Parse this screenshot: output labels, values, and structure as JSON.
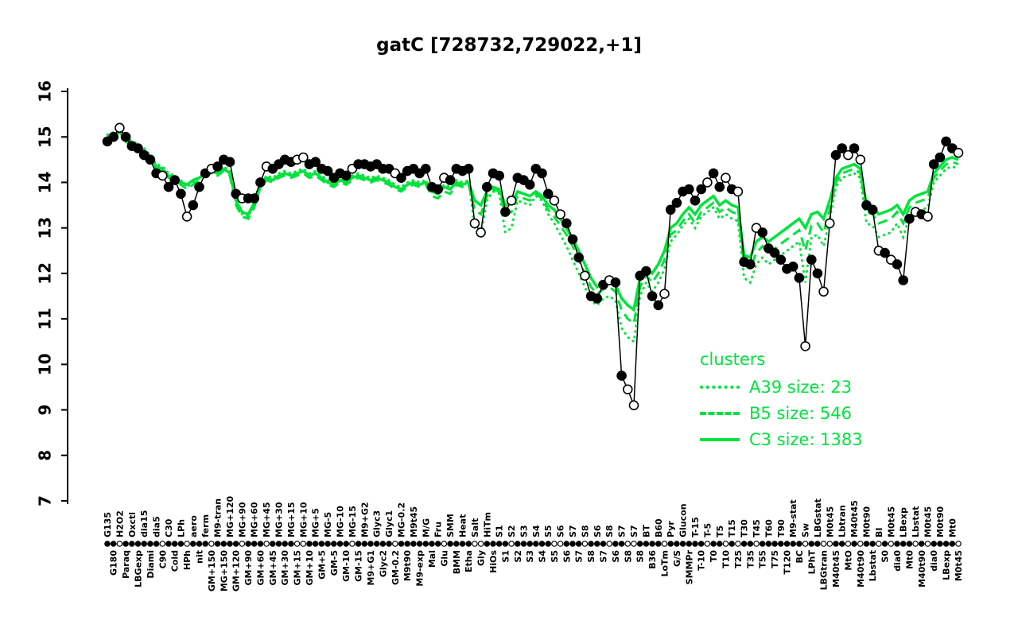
{
  "title": "gatC [728732,729022,+1]",
  "colors": {
    "cluster": "#00e33c",
    "gene": "#000000",
    "background": "#ffffff"
  },
  "legend": {
    "header": "clusters",
    "entries": [
      {
        "label": "A39 size: 23",
        "style": "dotted"
      },
      {
        "label": "B5 size: 546",
        "style": "dashed"
      },
      {
        "label": "C3 size: 1383",
        "style": "solid"
      }
    ]
  },
  "chart_data": {
    "type": "line",
    "title": "gatC [728732,729022,+1]",
    "xlabel": "",
    "ylabel": "",
    "ylim": [
      7,
      16
    ],
    "yticks": [
      7,
      8,
      9,
      10,
      11,
      12,
      13,
      14,
      15,
      16
    ],
    "grid": false,
    "legend_position": "right-center",
    "categories": [
      "G135",
      "G180",
      "H2O2",
      "Paraq",
      "Oxctl",
      "LBGexp",
      "dia15",
      "Diami",
      "dia5",
      "C90",
      "C30",
      "Cold",
      "LPh",
      "HPh",
      "aero",
      "nit",
      "ferm",
      "GM+150",
      "M9-tran",
      "MG+150",
      "MG+120",
      "GM+120",
      "MG+90",
      "GM+90",
      "MG+60",
      "GM+60",
      "MG+45",
      "GM+45",
      "MG+30",
      "GM+30",
      "MG+15",
      "GM+15",
      "MG+10",
      "GM+10",
      "MG+5",
      "GM+5",
      "MG-5",
      "GM-5",
      "MG-10",
      "GM-10",
      "MG-15",
      "GM-15",
      "M9+G2",
      "M9+G1",
      "Glyc3",
      "Glyc2",
      "Glyc1",
      "GM-0.2",
      "MG-0.2",
      "M9t90",
      "M9t45",
      "M9-exp",
      "M/G",
      "Mal",
      "Fru",
      "Glu",
      "SMM",
      "BMM",
      "Heat",
      "Etha",
      "Salt",
      "Gly",
      "HiTm",
      "HiOs",
      "S1",
      "S1",
      "S2",
      "S2",
      "S3",
      "S3",
      "S4",
      "S4",
      "S5",
      "S5",
      "S6",
      "S6",
      "S7",
      "S7",
      "S8",
      "S8",
      "S6",
      "S7",
      "S8",
      "S6",
      "S7",
      "S8",
      "S7",
      "S8",
      "BT",
      "B36",
      "B60",
      "LoTm",
      "Pyr",
      "G/S",
      "Glucon",
      "SMMPr",
      "T-15",
      "T-10",
      "T-5",
      "T0",
      "T5",
      "T10",
      "T15",
      "T25",
      "T30",
      "T35",
      "T45",
      "T55",
      "T60",
      "T75",
      "T90",
      "T120",
      "M9-stat",
      "BC",
      "Sw",
      "LPhT",
      "LBGstat",
      "LBGtran",
      "M0t45",
      "M40t45",
      "Lbtran",
      "MtO",
      "M40t45",
      "M40t90",
      "M0t90",
      "Lbstat",
      "BI",
      "S0",
      "M0t45",
      "dia0",
      "LBexp",
      "Mt0",
      "Lbstat",
      "M40t90",
      "M0t45",
      "dia0",
      "M0t90",
      "LBexp",
      "Mt0",
      "M0t45"
    ],
    "point_filled": [
      1,
      1,
      0,
      1,
      1,
      1,
      1,
      1,
      1,
      0,
      1,
      1,
      1,
      0,
      1,
      1,
      1,
      0,
      1,
      1,
      1,
      1,
      0,
      1,
      1,
      1,
      0,
      1,
      1,
      1,
      1,
      0,
      0,
      1,
      1,
      1,
      1,
      1,
      1,
      1,
      0,
      1,
      1,
      1,
      1,
      1,
      1,
      0,
      1,
      1,
      1,
      1,
      1,
      1,
      1,
      0,
      1,
      1,
      1,
      1,
      0,
      0,
      1,
      1,
      1,
      1,
      0,
      1,
      1,
      1,
      1,
      1,
      1,
      0,
      0,
      1,
      1,
      1,
      0,
      1,
      1,
      1,
      0,
      1,
      1,
      0,
      0,
      1,
      1,
      1,
      1,
      0,
      1,
      1,
      1,
      1,
      1,
      1,
      0,
      1,
      1,
      0,
      1,
      0,
      1,
      1,
      0,
      1,
      1,
      1,
      1,
      1,
      1,
      1,
      0,
      1,
      1,
      0,
      0,
      1,
      1,
      0,
      1,
      0,
      1,
      1,
      0,
      1,
      0,
      1,
      1,
      1,
      0,
      1,
      0,
      1,
      1,
      1,
      1,
      0
    ],
    "series": [
      {
        "name": "gene gatC",
        "color": "#000000",
        "style": "solid-with-points",
        "values": [
          14.9,
          15.0,
          15.2,
          15.0,
          14.8,
          14.75,
          14.6,
          14.5,
          14.2,
          14.15,
          13.9,
          14.05,
          13.75,
          13.25,
          13.5,
          13.9,
          14.2,
          14.3,
          14.35,
          14.5,
          14.45,
          13.75,
          13.65,
          13.65,
          13.65,
          14.0,
          14.35,
          14.3,
          14.4,
          14.5,
          14.45,
          14.5,
          14.55,
          14.4,
          14.45,
          14.3,
          14.25,
          14.1,
          14.2,
          14.15,
          14.3,
          14.4,
          14.4,
          14.35,
          14.4,
          14.3,
          14.3,
          14.2,
          14.1,
          14.25,
          14.3,
          14.2,
          14.3,
          13.9,
          13.85,
          14.1,
          14.05,
          14.3,
          14.25,
          14.3,
          13.1,
          12.9,
          13.9,
          14.2,
          14.15,
          13.35,
          13.6,
          14.1,
          14.05,
          13.95,
          14.3,
          14.2,
          13.75,
          13.6,
          13.3,
          13.1,
          12.75,
          12.35,
          11.95,
          11.5,
          11.45,
          11.75,
          11.85,
          11.8,
          9.75,
          9.45,
          9.1,
          11.95,
          12.05,
          11.5,
          11.3,
          11.55,
          13.4,
          13.55,
          13.8,
          13.85,
          13.6,
          13.85,
          14.0,
          14.2,
          13.9,
          14.1,
          13.85,
          13.8,
          12.25,
          12.2,
          13.0,
          12.9,
          12.55,
          12.45,
          12.3,
          12.1,
          12.15,
          11.9,
          10.4,
          12.3,
          12.0,
          11.6,
          13.1,
          14.6,
          14.75,
          14.6,
          14.75,
          14.5,
          13.5,
          13.4,
          12.5,
          12.45,
          12.3,
          12.2,
          11.85,
          13.2,
          13.35,
          13.3,
          13.25,
          14.4,
          14.55,
          14.9,
          14.75,
          14.65
        ]
      },
      {
        "name": "A39 size: 23",
        "color": "#00e33c",
        "style": "dotted",
        "values": [
          15.05,
          15.1,
          15.15,
          15.0,
          14.9,
          14.85,
          14.75,
          14.6,
          14.4,
          14.35,
          14.2,
          14.15,
          14.05,
          13.9,
          14.0,
          14.1,
          14.2,
          14.3,
          14.25,
          14.35,
          14.25,
          13.55,
          13.3,
          13.25,
          13.5,
          13.95,
          14.15,
          14.1,
          14.2,
          14.25,
          14.2,
          14.25,
          14.3,
          14.2,
          14.25,
          14.15,
          14.05,
          14.0,
          14.1,
          14.05,
          14.15,
          14.2,
          14.15,
          14.1,
          14.15,
          14.1,
          14.05,
          13.95,
          13.9,
          14.0,
          14.05,
          14.0,
          14.05,
          13.85,
          13.8,
          13.95,
          13.9,
          14.05,
          14.0,
          14.05,
          13.0,
          12.85,
          13.6,
          13.8,
          13.75,
          12.9,
          13.0,
          13.6,
          13.55,
          13.5,
          13.7,
          13.6,
          13.3,
          13.1,
          12.85,
          12.6,
          12.3,
          12.0,
          11.7,
          11.4,
          11.3,
          11.45,
          11.5,
          11.4,
          10.8,
          10.6,
          10.5,
          11.5,
          11.8,
          11.6,
          11.8,
          12.1,
          12.7,
          12.85,
          13.05,
          13.2,
          13.0,
          13.25,
          13.35,
          13.45,
          13.2,
          13.3,
          13.2,
          13.15,
          11.9,
          11.8,
          12.2,
          12.35,
          12.2,
          12.3,
          12.4,
          12.5,
          12.6,
          12.7,
          11.8,
          12.8,
          12.85,
          12.6,
          13.2,
          13.9,
          14.1,
          14.15,
          14.2,
          14.1,
          13.1,
          13.05,
          12.8,
          12.85,
          12.9,
          13.1,
          12.8,
          13.25,
          13.35,
          13.4,
          13.45,
          14.0,
          14.15,
          14.3,
          14.35,
          14.3
        ]
      },
      {
        "name": "B5 size: 546",
        "color": "#00e33c",
        "style": "dashed",
        "values": [
          15.0,
          15.0,
          15.05,
          14.9,
          14.8,
          14.75,
          14.65,
          14.5,
          14.3,
          14.25,
          14.1,
          14.05,
          13.95,
          13.85,
          13.95,
          14.05,
          14.15,
          14.2,
          14.15,
          14.25,
          14.15,
          13.5,
          13.25,
          13.2,
          13.45,
          13.9,
          14.05,
          14.0,
          14.1,
          14.15,
          14.1,
          14.15,
          14.2,
          14.1,
          14.15,
          14.05,
          13.95,
          13.9,
          14.0,
          13.95,
          14.05,
          14.1,
          14.05,
          14.0,
          14.05,
          14.0,
          13.95,
          13.85,
          13.8,
          13.9,
          13.95,
          13.9,
          13.95,
          13.7,
          13.65,
          13.8,
          13.75,
          13.95,
          13.9,
          13.95,
          13.4,
          13.3,
          13.7,
          13.85,
          13.8,
          13.3,
          13.35,
          13.7,
          13.65,
          13.6,
          13.75,
          13.65,
          13.4,
          13.25,
          13.05,
          12.85,
          12.6,
          12.3,
          12.0,
          11.7,
          11.55,
          11.65,
          11.7,
          11.6,
          11.2,
          11.0,
          10.9,
          11.7,
          11.95,
          11.8,
          12.0,
          12.3,
          12.85,
          12.95,
          13.15,
          13.3,
          13.1,
          13.35,
          13.45,
          13.55,
          13.35,
          13.45,
          13.35,
          13.3,
          12.2,
          12.1,
          12.45,
          12.6,
          12.45,
          12.55,
          12.65,
          12.75,
          12.85,
          12.95,
          12.5,
          13.05,
          13.1,
          12.9,
          13.4,
          14.0,
          14.2,
          14.25,
          14.3,
          14.2,
          13.35,
          13.3,
          13.1,
          13.15,
          13.2,
          13.35,
          13.1,
          13.45,
          13.55,
          13.6,
          13.65,
          14.1,
          14.25,
          14.4,
          14.45,
          14.4
        ]
      },
      {
        "name": "C3 size: 1383",
        "color": "#00e33c",
        "style": "solid",
        "values": [
          15.0,
          15.05,
          15.1,
          14.95,
          14.85,
          14.8,
          14.7,
          14.55,
          14.35,
          14.3,
          14.15,
          14.1,
          14.0,
          13.95,
          14.05,
          14.1,
          14.2,
          14.25,
          14.2,
          14.3,
          14.2,
          13.6,
          13.35,
          13.3,
          13.55,
          13.95,
          14.1,
          14.05,
          14.15,
          14.2,
          14.15,
          14.2,
          14.25,
          14.15,
          14.2,
          14.1,
          14.0,
          13.95,
          14.05,
          14.0,
          14.1,
          14.15,
          14.1,
          14.05,
          14.1,
          14.05,
          14.0,
          13.9,
          13.85,
          13.95,
          14.0,
          13.95,
          14.0,
          13.8,
          13.75,
          13.9,
          13.85,
          14.0,
          13.95,
          14.0,
          13.6,
          13.5,
          13.8,
          13.9,
          13.85,
          13.5,
          13.55,
          13.8,
          13.75,
          13.7,
          13.8,
          13.7,
          13.5,
          13.4,
          13.2,
          13.0,
          12.75,
          12.5,
          12.2,
          11.9,
          11.7,
          11.8,
          11.85,
          11.75,
          11.45,
          11.3,
          11.2,
          11.9,
          12.1,
          12.0,
          12.2,
          12.5,
          13.0,
          13.1,
          13.3,
          13.45,
          13.3,
          13.5,
          13.6,
          13.7,
          13.5,
          13.6,
          13.5,
          13.45,
          12.4,
          12.35,
          12.7,
          12.8,
          12.7,
          12.8,
          12.9,
          13.0,
          13.1,
          13.2,
          13.0,
          13.3,
          13.35,
          13.2,
          13.6,
          14.1,
          14.3,
          14.35,
          14.4,
          14.3,
          13.5,
          13.45,
          13.3,
          13.35,
          13.4,
          13.5,
          13.3,
          13.6,
          13.7,
          13.75,
          13.8,
          14.2,
          14.35,
          14.5,
          14.55,
          14.5
        ]
      }
    ]
  }
}
